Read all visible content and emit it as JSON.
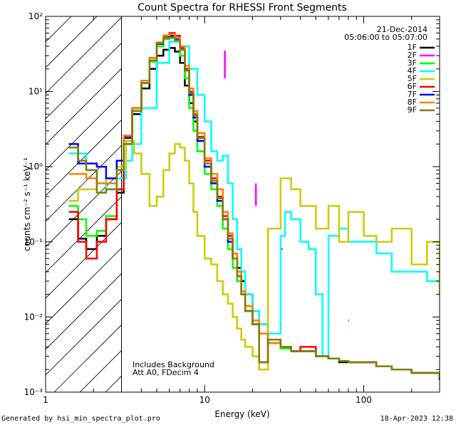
{
  "chart_data": {
    "type": "line",
    "title": "Count Spectra for RHESSI Front Segments",
    "xlabel": "Energy (keV)",
    "ylabel": "counts cm⁻² s⁻¹ keV⁻¹",
    "xscale": "log",
    "yscale": "log",
    "xlim": [
      1,
      300
    ],
    "ylim": [
      0.001,
      100
    ],
    "x_tick_labels": [
      "1",
      "10",
      "100"
    ],
    "y_tick_labels": [
      "10⁻³",
      "10⁻²",
      "10⁻¹",
      "10⁰",
      "10¹",
      "10²"
    ],
    "date": "21-Dec-2014",
    "time_range": "05:06:00 to 05:07:00",
    "hatch_cutoff_kev": 3,
    "annotations": [
      "Includes Background",
      "Att A0, FDecim 4"
    ],
    "series": [
      {
        "name": "1F",
        "color": "#000000",
        "x": [
          1.4,
          1.6,
          1.8,
          2.1,
          2.4,
          2.8,
          3.1,
          3.5,
          4,
          4.5,
          5,
          5.5,
          6,
          6.5,
          7,
          7.5,
          8,
          8.5,
          9,
          10,
          11,
          12,
          13,
          14,
          15,
          16,
          17,
          18,
          20,
          22,
          25,
          30,
          35,
          40,
          50,
          60,
          70,
          80,
          100,
          120,
          150,
          200,
          250,
          300
        ],
        "values": [
          0.2,
          0.11,
          0.08,
          0.12,
          0.2,
          0.45,
          2,
          5,
          11,
          20,
          30,
          36,
          38,
          34,
          24,
          12,
          7,
          4,
          2.2,
          1,
          0.6,
          0.35,
          0.2,
          0.12,
          0.07,
          0.045,
          0.03,
          0.02,
          0.012,
          0.008,
          0.005,
          0.004,
          0.0035,
          0.0035,
          0.003,
          0.0028,
          0.0025,
          0.0025,
          0.0025,
          0.0022,
          0.002,
          0.0018,
          0.0018,
          0.0015
        ]
      },
      {
        "name": "2F",
        "color": "#ff00ff",
        "segments": [
          {
            "x": [
              13.4,
              13.4
            ],
            "values": [
              35,
              15
            ]
          },
          {
            "x": [
              21,
              21
            ],
            "values": [
              0.6,
              0.3
            ]
          },
          {
            "x": [
              30,
              31
            ],
            "values": [
              0.08,
              0.08
            ]
          },
          {
            "x": [
              55,
              56
            ],
            "values": [
              0.02,
              0.02
            ]
          },
          {
            "x": [
              80,
              81
            ],
            "values": [
              0.009,
              0.009
            ]
          }
        ]
      },
      {
        "name": "3F",
        "color": "#00ff00",
        "x": [
          1.4,
          1.6,
          1.8,
          2.1,
          2.4,
          2.8,
          3.1,
          3.5,
          4,
          4.5,
          5,
          5.5,
          6,
          6.5,
          7,
          7.5,
          8,
          8.5,
          9,
          10,
          11,
          12,
          13,
          14,
          15,
          16,
          17,
          18,
          20,
          22,
          25,
          30,
          35,
          40,
          50,
          60,
          70,
          80,
          100,
          120,
          150,
          200,
          250,
          300
        ],
        "values": [
          0.3,
          0.2,
          0.12,
          0.14,
          0.22,
          0.5,
          2.2,
          5.5,
          13,
          25,
          40,
          50,
          52,
          46,
          30,
          15,
          6,
          3,
          1.6,
          0.8,
          0.5,
          0.3,
          0.15,
          0.08,
          0.045,
          0.03,
          0.02,
          0.014,
          0.009,
          0.006,
          0.0045,
          0.0038,
          0.0035,
          0.0035,
          0.003,
          0.0028,
          0.0026,
          0.0025,
          0.0025,
          0.0022,
          0.002,
          0.0018,
          0.0018,
          0.0016
        ]
      },
      {
        "name": "4F",
        "color": "#00ffff",
        "x": [
          1.4,
          1.6,
          1.8,
          2.1,
          2.4,
          2.8,
          3.2,
          3.5,
          4,
          5,
          6,
          7,
          8,
          9,
          10,
          11,
          12,
          13,
          14,
          15,
          16,
          17,
          18,
          20,
          22,
          25,
          30,
          32,
          35,
          40,
          45,
          50,
          55,
          60,
          70,
          80,
          100,
          120,
          150,
          200,
          250,
          300
        ],
        "values": [
          1.5,
          1.5,
          0.9,
          0.6,
          0.5,
          0.7,
          1.2,
          2,
          6,
          24,
          46,
          40,
          20,
          9,
          4,
          1.6,
          1.2,
          1.4,
          0.6,
          0.2,
          0.08,
          0.04,
          0.02,
          0.012,
          0.008,
          0.006,
          0.12,
          0.25,
          0.2,
          0.1,
          0.08,
          0.02,
          0.003,
          0.12,
          0.15,
          0.1,
          0.1,
          0.07,
          0.04,
          0.04,
          0.03,
          0.025
        ]
      },
      {
        "name": "5F",
        "color": "#cccc00",
        "x": [
          1.4,
          1.6,
          1.8,
          2.1,
          2.4,
          2.8,
          3.2,
          3.6,
          4,
          4.5,
          5,
          5.5,
          6,
          6.5,
          7,
          7.5,
          8,
          8.5,
          9,
          10,
          11,
          12,
          13,
          14,
          15,
          16,
          17,
          18,
          20,
          22,
          25,
          30,
          35,
          40,
          50,
          60,
          70,
          80,
          100,
          120,
          150,
          200,
          250,
          300
        ],
        "values": [
          0.35,
          0.5,
          0.5,
          0.6,
          0.7,
          1,
          2.2,
          1.5,
          0.8,
          0.3,
          0.4,
          0.9,
          1.5,
          2,
          1.8,
          1.2,
          0.6,
          0.25,
          0.12,
          0.06,
          0.05,
          0.03,
          0.02,
          0.015,
          0.01,
          0.007,
          0.005,
          0.004,
          0.003,
          0.002,
          0.15,
          0.7,
          0.5,
          0.3,
          0.15,
          0.3,
          0.1,
          0.25,
          0.12,
          0.1,
          0.15,
          0.05,
          0.1,
          0.02
        ]
      },
      {
        "name": "6F",
        "color": "#ff0000",
        "x": [
          1.4,
          1.6,
          1.8,
          2.1,
          2.4,
          2.8,
          3.1,
          3.5,
          4,
          4.5,
          5,
          5.5,
          6,
          6.5,
          7,
          7.5,
          8,
          8.5,
          9,
          10,
          11,
          12,
          13,
          14,
          15,
          16,
          17,
          18,
          20,
          22,
          25,
          30,
          35,
          40,
          50,
          60,
          70,
          80,
          100,
          120,
          150,
          200,
          250,
          300
        ],
        "values": [
          0.25,
          0.1,
          0.06,
          0.1,
          0.2,
          0.5,
          2.5,
          6,
          14,
          28,
          45,
          55,
          60,
          55,
          38,
          20,
          10,
          5,
          2.5,
          1.2,
          0.7,
          0.4,
          0.22,
          0.12,
          0.06,
          0.035,
          0.02,
          0.012,
          0.008,
          0.0025,
          0.005,
          0.004,
          0.0035,
          0.004,
          0.003,
          0.0028,
          0.0026,
          0.0025,
          0.0025,
          0.0022,
          0.002,
          0.0018,
          0.0018,
          0.0016
        ]
      },
      {
        "name": "7F",
        "color": "#0000ff",
        "x": [
          1.4,
          1.6,
          1.8,
          2.1,
          2.4,
          2.8,
          3.1,
          3.5,
          4,
          4.5,
          5,
          5.5,
          6,
          6.5,
          7,
          7.5,
          8,
          8.5,
          9,
          10,
          11,
          12,
          13,
          14,
          15,
          16,
          17,
          18,
          20,
          22,
          25,
          30,
          35,
          40,
          50,
          60,
          70,
          80,
          100,
          120,
          150,
          200,
          250,
          300
        ],
        "values": [
          2,
          1.1,
          1.1,
          1,
          0.7,
          1.2,
          2.4,
          6,
          13,
          26,
          43,
          52,
          55,
          50,
          36,
          19,
          9,
          4.5,
          2.2,
          1,
          0.6,
          0.35,
          0.2,
          0.1,
          0.06,
          0.035,
          0.02,
          0.012,
          0.008,
          0.006,
          0.0045,
          0.004,
          0.0035,
          0.0035,
          0.003,
          0.0028,
          0.0026,
          0.0025,
          0.0025,
          0.0022,
          0.002,
          0.0018,
          0.0018,
          0.0015
        ]
      },
      {
        "name": "8F",
        "color": "#ff8000",
        "x": [
          1.4,
          1.6,
          1.8,
          2.1,
          2.4,
          2.8,
          3.1,
          3.5,
          4,
          4.5,
          5,
          5.5,
          6,
          6.5,
          7,
          7.5,
          8,
          8.5,
          9,
          10,
          11,
          12,
          13,
          14,
          15,
          16,
          17,
          18,
          20,
          22,
          25,
          30,
          35,
          40,
          50,
          60,
          70,
          80,
          100,
          120,
          150,
          200,
          250,
          300
        ],
        "values": [
          0.8,
          0.8,
          0.7,
          0.6,
          0.6,
          0.9,
          2.6,
          6,
          14,
          28,
          45,
          56,
          58,
          52,
          40,
          22,
          11,
          5.5,
          2.8,
          1.3,
          0.8,
          0.5,
          0.25,
          0.13,
          0.07,
          0.04,
          0.022,
          0.014,
          0.009,
          0.006,
          0.0045,
          0.004,
          0.0035,
          0.0035,
          0.003,
          0.0028,
          0.0026,
          0.0025,
          0.0025,
          0.0022,
          0.002,
          0.0018,
          0.0018,
          0.0016
        ]
      },
      {
        "name": "9F",
        "color": "#808000",
        "x": [
          1.4,
          1.6,
          1.8,
          2.1,
          2.4,
          2.8,
          3.1,
          3.5,
          4,
          4.5,
          5,
          5.5,
          6,
          6.5,
          7,
          7.5,
          8,
          8.5,
          9,
          10,
          11,
          12,
          13,
          14,
          15,
          16,
          17,
          18,
          20,
          22,
          25,
          30,
          35,
          40,
          50,
          60,
          70,
          80,
          100,
          120,
          150,
          200,
          250,
          300
        ],
        "values": [
          1.8,
          1.2,
          0.9,
          0.45,
          0.5,
          0.9,
          2,
          5.5,
          13,
          26,
          44,
          52,
          52,
          48,
          36,
          19,
          9.5,
          4.8,
          2.4,
          1.1,
          0.65,
          0.38,
          0.2,
          0.11,
          0.06,
          0.035,
          0.02,
          0.012,
          0.008,
          0.0025,
          0.005,
          0.004,
          0.0035,
          0.0035,
          0.003,
          0.0028,
          0.0026,
          0.0025,
          0.0025,
          0.0022,
          0.002,
          0.0018,
          0.0018,
          0.0016
        ]
      }
    ]
  },
  "footer": {
    "left": "Generated by hsi_min_spectra_plot.pro",
    "right": "18-Apr-2023 12:38"
  }
}
